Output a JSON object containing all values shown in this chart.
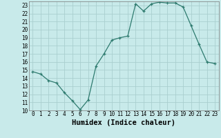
{
  "xlabel": "Humidex (Indice chaleur)",
  "ylabel": "",
  "x_values": [
    0,
    1,
    2,
    3,
    4,
    5,
    6,
    7,
    8,
    9,
    10,
    11,
    12,
    13,
    14,
    15,
    16,
    17,
    18,
    19,
    20,
    21,
    22,
    23
  ],
  "y_values": [
    14.8,
    14.5,
    13.7,
    13.4,
    12.2,
    11.2,
    10.1,
    11.3,
    15.5,
    17.0,
    18.7,
    19.0,
    19.2,
    23.2,
    22.3,
    23.2,
    23.4,
    23.3,
    23.3,
    22.8,
    20.5,
    18.2,
    16.0,
    15.8
  ],
  "line_color": "#2d7a6e",
  "marker": "+",
  "bg_color": "#c8eaea",
  "grid_color": "#aacfcf",
  "ylim": [
    10,
    23.5
  ],
  "xlim": [
    -0.5,
    23.5
  ],
  "yticks": [
    10,
    11,
    12,
    13,
    14,
    15,
    16,
    17,
    18,
    19,
    20,
    21,
    22,
    23
  ],
  "xticks": [
    0,
    1,
    2,
    3,
    4,
    5,
    6,
    7,
    8,
    9,
    10,
    11,
    12,
    13,
    14,
    15,
    16,
    17,
    18,
    19,
    20,
    21,
    22,
    23
  ],
  "tick_fontsize": 5.5,
  "label_fontsize": 7.5,
  "marker_size": 3.5,
  "line_width": 0.9
}
